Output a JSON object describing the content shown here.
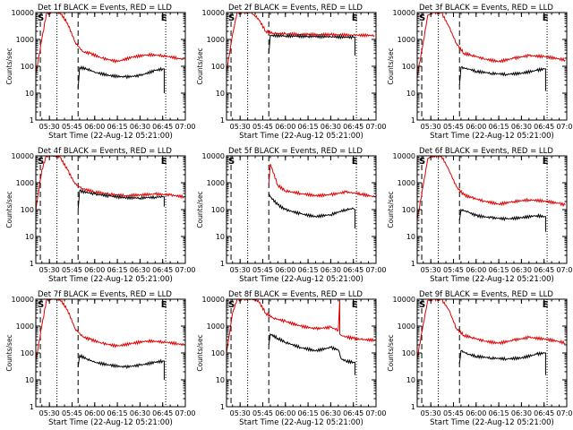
{
  "figure": {
    "shared_xlabel": "Start Time (22-Aug-12 05:21:00)",
    "shared_ylabel": "Counts/sec",
    "x_tick_labels": [
      "05:30",
      "05:45",
      "06:00",
      "06:15",
      "06:30",
      "06:45",
      "07:00"
    ],
    "y_tick_labels": [
      "1",
      "10",
      "100",
      "1000",
      "10000"
    ],
    "marker_start": "S",
    "marker_end": "E",
    "colors": {
      "events": "#000000",
      "lld": "#e00000",
      "axes": "#000000"
    }
  },
  "chart_data": [
    {
      "type": "line",
      "title": "Det 1f BLACK = Events, RED = LLD",
      "xlabel": "Start Time (22-Aug-12 05:21:00)",
      "ylabel": "Counts/sec",
      "y_scale": "log",
      "ylim": [
        1,
        10000
      ],
      "xlim": [
        "05:21",
        "07:00"
      ],
      "x_ticks": [
        "05:30",
        "05:45",
        "06:00",
        "06:15",
        "06:30",
        "06:45",
        "07:00"
      ],
      "y_ticks": [
        1,
        10,
        100,
        1000,
        10000
      ],
      "vlines": {
        "dotted": [
          "05:21",
          "05:35",
          "06:47"
        ],
        "dashed": [
          "05:24",
          "05:49"
        ]
      },
      "series": [
        {
          "name": "LLD",
          "color": "#e00000",
          "x": [
            "05:21",
            "05:25",
            "05:28",
            "05:32",
            "05:37",
            "05:42",
            "05:47",
            "05:52",
            "05:57",
            "06:05",
            "06:15",
            "06:25",
            "06:35",
            "06:45",
            "06:55",
            "06:59"
          ],
          "y": [
            50,
            1000,
            9000,
            10000,
            10000,
            4000,
            800,
            350,
            300,
            200,
            150,
            220,
            270,
            250,
            200,
            180
          ]
        },
        {
          "name": "Events",
          "color": "#000000",
          "x": [
            "05:49",
            "05:50",
            "05:55",
            "06:00",
            "06:10",
            "06:20",
            "06:30",
            "06:40",
            "06:45",
            "06:46",
            "06:46"
          ],
          "y": [
            15,
            90,
            80,
            60,
            45,
            40,
            45,
            70,
            80,
            80,
            10
          ]
        }
      ]
    },
    {
      "type": "line",
      "title": "Det 2f BLACK = Events, RED = LLD",
      "xlabel": "Start Time (22-Aug-12 05:21:00)",
      "ylabel": "Counts/sec",
      "y_scale": "log",
      "ylim": [
        1,
        10000
      ],
      "xlim": [
        "05:21",
        "07:00"
      ],
      "x_ticks": [
        "05:30",
        "05:45",
        "06:00",
        "06:15",
        "06:30",
        "06:45",
        "07:00"
      ],
      "y_ticks": [
        1,
        10,
        100,
        1000,
        10000
      ],
      "vlines": {
        "dotted": [
          "05:21",
          "05:35",
          "06:47"
        ],
        "dashed": [
          "05:24",
          "05:49"
        ]
      },
      "series": [
        {
          "name": "LLD",
          "color": "#e00000",
          "x": [
            "05:21",
            "05:25",
            "05:28",
            "05:32",
            "05:37",
            "05:42",
            "05:47",
            "05:52",
            "06:00",
            "06:15",
            "06:30",
            "06:45",
            "06:59"
          ],
          "y": [
            60,
            1500,
            10000,
            10000,
            10000,
            6000,
            2000,
            1700,
            1600,
            1500,
            1500,
            1450,
            1400
          ]
        },
        {
          "name": "Events",
          "color": "#000000",
          "x": [
            "05:49",
            "05:50",
            "06:00",
            "06:15",
            "06:30",
            "06:45",
            "06:46",
            "06:46"
          ],
          "y": [
            300,
            1400,
            1350,
            1300,
            1250,
            1200,
            1200,
            250
          ]
        }
      ]
    },
    {
      "type": "line",
      "title": "Det 3f BLACK = Events, RED = LLD",
      "xlabel": "Start Time (22-Aug-12 05:21:00)",
      "ylabel": "Counts/sec",
      "y_scale": "log",
      "ylim": [
        1,
        10000
      ],
      "xlim": [
        "05:21",
        "07:00"
      ],
      "x_ticks": [
        "05:30",
        "05:45",
        "06:00",
        "06:15",
        "06:30",
        "06:45",
        "07:00"
      ],
      "y_ticks": [
        1,
        10,
        100,
        1000,
        10000
      ],
      "vlines": {
        "dotted": [
          "05:21",
          "05:35",
          "06:47"
        ],
        "dashed": [
          "05:24",
          "05:49"
        ]
      },
      "series": [
        {
          "name": "LLD",
          "color": "#e00000",
          "x": [
            "05:21",
            "05:25",
            "05:28",
            "05:32",
            "05:37",
            "05:42",
            "05:47",
            "05:52",
            "05:57",
            "06:05",
            "06:15",
            "06:25",
            "06:35",
            "06:45",
            "06:55",
            "06:59"
          ],
          "y": [
            40,
            800,
            8000,
            10000,
            10000,
            3000,
            700,
            300,
            260,
            190,
            150,
            200,
            250,
            230,
            190,
            170
          ]
        },
        {
          "name": "Events",
          "color": "#000000",
          "x": [
            "05:49",
            "05:50",
            "05:55",
            "06:00",
            "06:10",
            "06:20",
            "06:30",
            "06:40",
            "06:45",
            "06:46",
            "06:46"
          ],
          "y": [
            20,
            90,
            80,
            65,
            55,
            50,
            55,
            70,
            80,
            80,
            12
          ]
        }
      ]
    },
    {
      "type": "line",
      "title": "Det 4f BLACK = Events, RED = LLD",
      "xlabel": "Start Time (22-Aug-12 05:21:00)",
      "ylabel": "Counts/sec",
      "y_scale": "log",
      "ylim": [
        1,
        10000
      ],
      "xlim": [
        "05:21",
        "07:00"
      ],
      "x_ticks": [
        "05:30",
        "05:45",
        "06:00",
        "06:15",
        "06:30",
        "06:45",
        "07:00"
      ],
      "y_ticks": [
        1,
        10,
        100,
        1000,
        10000
      ],
      "vlines": {
        "dotted": [
          "05:21",
          "05:35",
          "06:47"
        ],
        "dashed": [
          "05:24",
          "05:49"
        ]
      },
      "series": [
        {
          "name": "LLD",
          "color": "#e00000",
          "x": [
            "05:21",
            "05:25",
            "05:28",
            "05:32",
            "05:37",
            "05:42",
            "05:47",
            "05:52",
            "06:00",
            "06:10",
            "06:20",
            "06:30",
            "06:40",
            "06:50",
            "06:59"
          ],
          "y": [
            100,
            3000,
            10000,
            10000,
            9000,
            3000,
            900,
            600,
            450,
            380,
            330,
            350,
            380,
            350,
            300
          ]
        },
        {
          "name": "Events",
          "color": "#000000",
          "x": [
            "05:49",
            "05:50",
            "06:00",
            "06:10",
            "06:20",
            "06:30",
            "06:40",
            "06:45",
            "06:46",
            "06:46"
          ],
          "y": [
            100,
            500,
            380,
            320,
            280,
            270,
            290,
            300,
            300,
            130
          ]
        }
      ]
    },
    {
      "type": "line",
      "title": "Det 5f BLACK = Events, RED = LLD",
      "xlabel": "Start Time (22-Aug-12 05:21:00)",
      "ylabel": "Counts/sec",
      "y_scale": "log",
      "ylim": [
        1,
        10000
      ],
      "xlim": [
        "05:21",
        "07:00"
      ],
      "x_ticks": [
        "05:30",
        "05:45",
        "06:00",
        "06:15",
        "06:30",
        "06:45",
        "07:00"
      ],
      "y_ticks": [
        1,
        10,
        100,
        1000,
        10000
      ],
      "vlines": {
        "dotted": [
          "05:21",
          "05:35",
          "06:47"
        ],
        "dashed": [
          "05:24",
          "05:49"
        ]
      },
      "series": [
        {
          "name": "LLD",
          "color": "#e00000",
          "x": [
            "05:49",
            "05:50",
            "05:55",
            "06:00",
            "06:10",
            "06:20",
            "06:30",
            "06:40",
            "06:45",
            "06:50",
            "06:59"
          ],
          "y": [
            900,
            5000,
            800,
            500,
            400,
            330,
            360,
            450,
            420,
            380,
            300
          ]
        },
        {
          "name": "Events",
          "color": "#000000",
          "x": [
            "05:49",
            "05:50",
            "05:55",
            "06:00",
            "06:10",
            "06:20",
            "06:30",
            "06:40",
            "06:45",
            "06:46",
            "06:46"
          ],
          "y": [
            400,
            300,
            150,
            100,
            70,
            55,
            65,
            100,
            110,
            100,
            20
          ]
        }
      ]
    },
    {
      "type": "line",
      "title": "Det 6f BLACK = Events, RED = LLD",
      "xlabel": "Start Time (22-Aug-12 05:21:00)",
      "ylabel": "Counts/sec",
      "y_scale": "log",
      "ylim": [
        1,
        10000
      ],
      "xlim": [
        "05:21",
        "07:00"
      ],
      "x_ticks": [
        "05:30",
        "05:45",
        "06:00",
        "06:15",
        "06:30",
        "06:45",
        "07:00"
      ],
      "y_ticks": [
        1,
        10,
        100,
        1000,
        10000
      ],
      "vlines": {
        "dotted": [
          "05:21",
          "05:35",
          "06:47"
        ],
        "dashed": [
          "05:24",
          "05:49"
        ]
      },
      "series": [
        {
          "name": "LLD",
          "color": "#e00000",
          "x": [
            "05:21",
            "05:25",
            "05:28",
            "05:32",
            "05:37",
            "05:42",
            "05:47",
            "05:52",
            "05:57",
            "06:05",
            "06:15",
            "06:25",
            "06:35",
            "06:45",
            "06:55",
            "06:59"
          ],
          "y": [
            40,
            800,
            8000,
            10000,
            10000,
            3000,
            700,
            350,
            280,
            210,
            160,
            200,
            230,
            210,
            170,
            150
          ]
        },
        {
          "name": "Events",
          "color": "#000000",
          "x": [
            "05:49",
            "05:50",
            "05:55",
            "06:00",
            "06:10",
            "06:20",
            "06:30",
            "06:40",
            "06:45",
            "06:46",
            "06:46"
          ],
          "y": [
            40,
            100,
            80,
            60,
            50,
            45,
            50,
            60,
            55,
            55,
            15
          ]
        }
      ]
    },
    {
      "type": "line",
      "title": "Det 7f BLACK = Events, RED = LLD",
      "xlabel": "Start Time (22-Aug-12 05:21:00)",
      "ylabel": "Counts/sec",
      "y_scale": "log",
      "ylim": [
        1,
        10000
      ],
      "xlim": [
        "05:21",
        "07:00"
      ],
      "x_ticks": [
        "05:30",
        "05:45",
        "06:00",
        "06:15",
        "06:30",
        "06:45",
        "07:00"
      ],
      "y_ticks": [
        1,
        10,
        100,
        1000,
        10000
      ],
      "vlines": {
        "dotted": [
          "05:21",
          "05:35",
          "06:47"
        ],
        "dashed": [
          "05:24",
          "05:49"
        ]
      },
      "series": [
        {
          "name": "LLD",
          "color": "#e00000",
          "x": [
            "05:21",
            "05:25",
            "05:28",
            "05:32",
            "05:37",
            "05:42",
            "05:47",
            "05:52",
            "05:57",
            "06:05",
            "06:15",
            "06:25",
            "06:35",
            "06:45",
            "06:55",
            "06:59"
          ],
          "y": [
            50,
            1000,
            9000,
            10000,
            10000,
            4000,
            800,
            400,
            320,
            230,
            180,
            230,
            280,
            260,
            220,
            200
          ]
        },
        {
          "name": "Events",
          "color": "#000000",
          "x": [
            "05:49",
            "05:50",
            "05:55",
            "06:00",
            "06:10",
            "06:20",
            "06:30",
            "06:40",
            "06:45",
            "06:46",
            "06:46"
          ],
          "y": [
            30,
            80,
            60,
            45,
            35,
            30,
            35,
            45,
            50,
            50,
            10
          ]
        }
      ]
    },
    {
      "type": "line",
      "title": "Det 8f BLACK = Events, RED = LLD",
      "xlabel": "Start Time (22-Aug-12 05:21:00)",
      "ylabel": "Counts/sec",
      "y_scale": "log",
      "ylim": [
        1,
        10000
      ],
      "xlim": [
        "05:21",
        "07:00"
      ],
      "x_ticks": [
        "05:30",
        "05:45",
        "06:00",
        "06:15",
        "06:30",
        "06:45",
        "07:00"
      ],
      "y_ticks": [
        1,
        10,
        100,
        1000,
        10000
      ],
      "vlines": {
        "dotted": [
          "05:21",
          "05:35",
          "06:47"
        ],
        "dashed": [
          "05:24",
          "05:49"
        ]
      },
      "series": [
        {
          "name": "LLD",
          "color": "#e00000",
          "x": [
            "05:21",
            "05:25",
            "05:28",
            "05:32",
            "05:37",
            "05:42",
            "05:47",
            "05:52",
            "06:00",
            "06:10",
            "06:20",
            "06:30",
            "06:35",
            "06:36",
            "06:36",
            "06:37",
            "06:40",
            "06:45",
            "06:50",
            "06:59"
          ],
          "y": [
            100,
            3000,
            10000,
            10000,
            10000,
            9000,
            3000,
            2000,
            1500,
            1000,
            800,
            900,
            700,
            10000,
            500,
            450,
            400,
            350,
            320,
            300
          ]
        },
        {
          "name": "Events",
          "color": "#000000",
          "x": [
            "05:49",
            "05:50",
            "05:55",
            "06:00",
            "06:10",
            "06:20",
            "06:30",
            "06:35",
            "06:37",
            "06:40",
            "06:45",
            "06:46",
            "06:46"
          ],
          "y": [
            200,
            500,
            350,
            250,
            160,
            120,
            160,
            130,
            60,
            50,
            45,
            45,
            15
          ]
        }
      ]
    },
    {
      "type": "line",
      "title": "Det 9f BLACK = Events, RED = LLD",
      "xlabel": "Start Time (22-Aug-12 05:21:00)",
      "ylabel": "Counts/sec",
      "y_scale": "log",
      "ylim": [
        1,
        10000
      ],
      "xlim": [
        "05:21",
        "07:00"
      ],
      "x_ticks": [
        "05:30",
        "05:45",
        "06:00",
        "06:15",
        "06:30",
        "06:45",
        "07:00"
      ],
      "y_ticks": [
        1,
        10,
        100,
        1000,
        10000
      ],
      "vlines": {
        "dotted": [
          "05:21",
          "05:35",
          "06:47"
        ],
        "dashed": [
          "05:24",
          "05:49"
        ]
      },
      "series": [
        {
          "name": "LLD",
          "color": "#e00000",
          "x": [
            "05:21",
            "05:25",
            "05:28",
            "05:32",
            "05:37",
            "05:42",
            "05:47",
            "05:52",
            "05:57",
            "06:05",
            "06:15",
            "06:25",
            "06:35",
            "06:45",
            "06:55",
            "06:59"
          ],
          "y": [
            60,
            1200,
            9000,
            10000,
            10000,
            4000,
            800,
            450,
            380,
            280,
            230,
            300,
            380,
            330,
            270,
            230
          ]
        },
        {
          "name": "Events",
          "color": "#000000",
          "x": [
            "05:49",
            "05:50",
            "05:55",
            "06:00",
            "06:10",
            "06:20",
            "06:30",
            "06:40",
            "06:45",
            "06:46",
            "06:46"
          ],
          "y": [
            40,
            120,
            90,
            75,
            65,
            60,
            65,
            90,
            100,
            100,
            15
          ]
        }
      ]
    }
  ]
}
